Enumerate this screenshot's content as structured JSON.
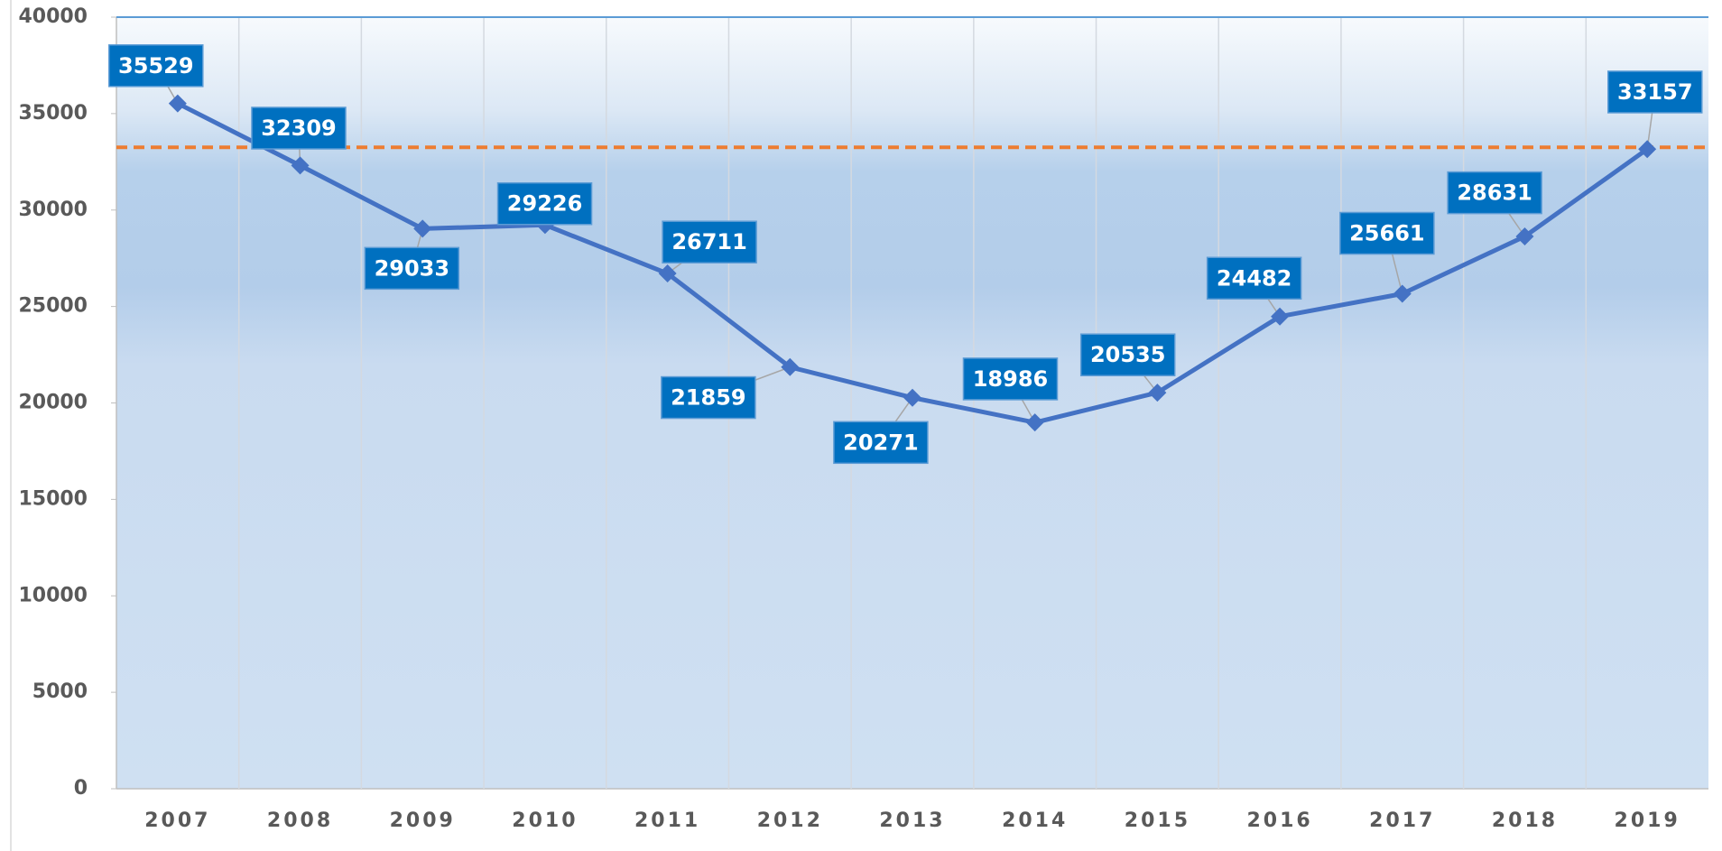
{
  "chart_data": {
    "type": "line",
    "categories": [
      "2007",
      "2008",
      "2009",
      "2010",
      "2011",
      "2012",
      "2013",
      "2014",
      "2015",
      "2016",
      "2017",
      "2018",
      "2019"
    ],
    "series": [
      {
        "color": "#4472c4",
        "values": [
          35529,
          32309,
          29033,
          29226,
          26711,
          21859,
          20271,
          18986,
          20535,
          24482,
          25661,
          28631,
          33157
        ]
      }
    ],
    "ylim": [
      0,
      40000
    ],
    "yticks": [
      0,
      5000,
      10000,
      15000,
      20000,
      25000,
      30000,
      35000,
      40000
    ],
    "hline": {
      "value": 33250,
      "color": "#ed7d31"
    },
    "label_color": "#0070c0"
  }
}
